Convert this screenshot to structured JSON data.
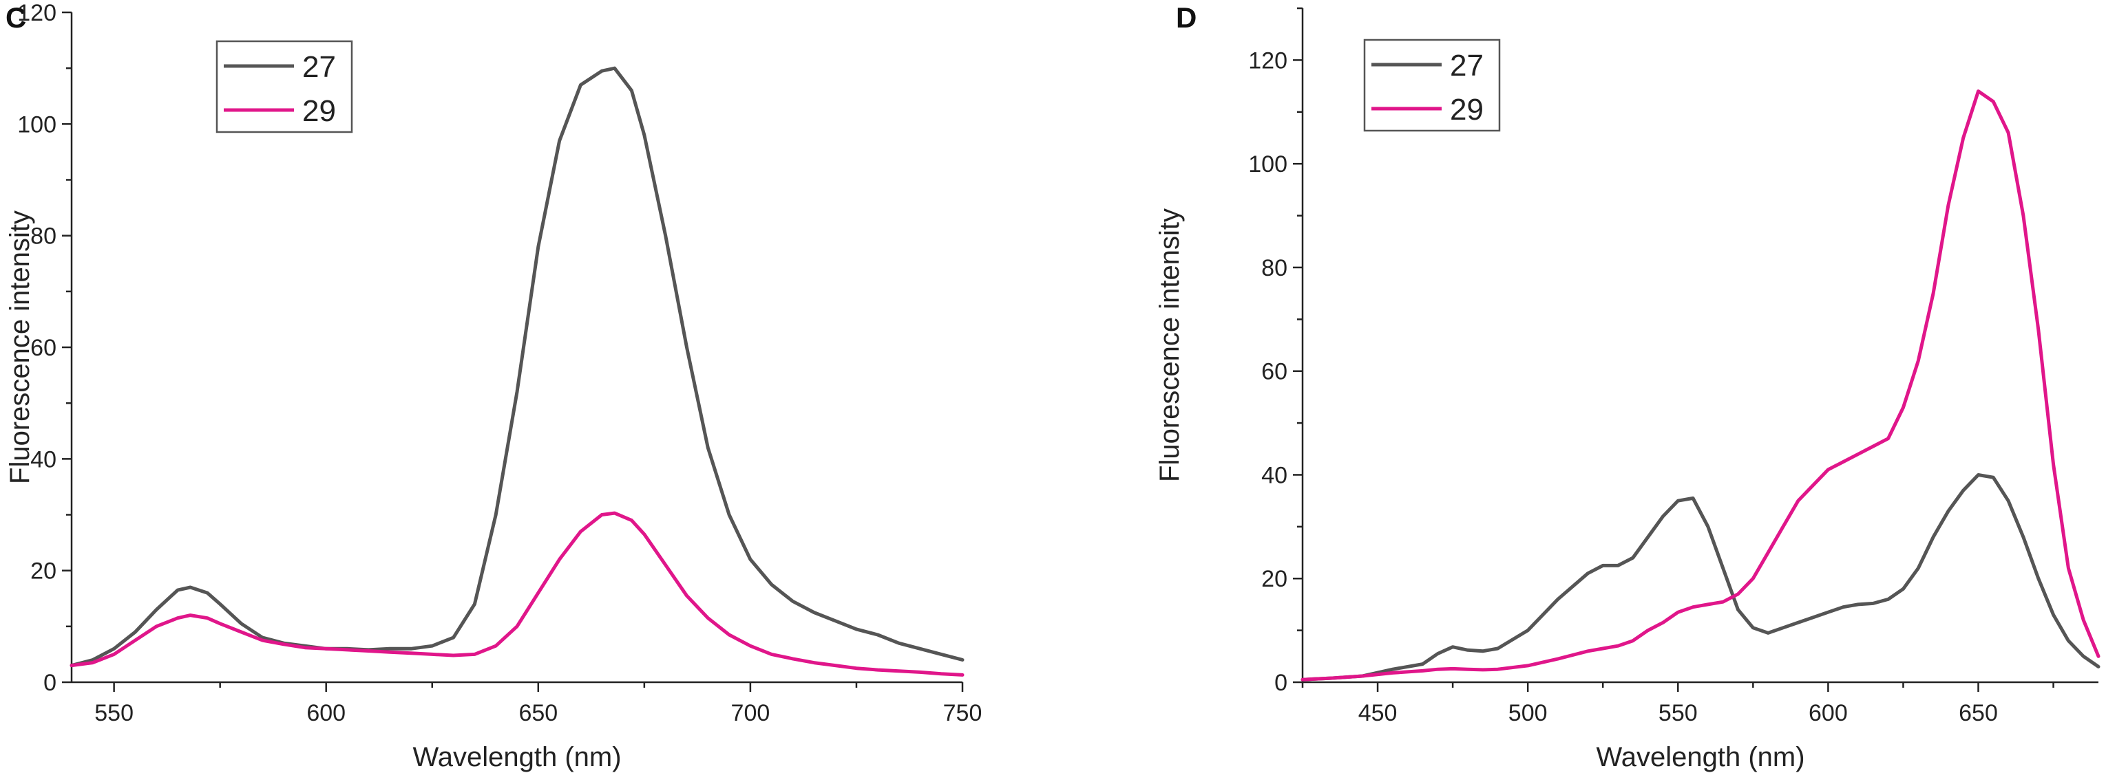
{
  "chart_data": [
    {
      "panel": "C",
      "type": "line",
      "xlabel": "Wavelength (nm)",
      "ylabel": "Fluorescence intensity",
      "xlim": [
        540,
        750
      ],
      "ylim": [
        0,
        120
      ],
      "xticks": [
        550,
        600,
        650,
        700,
        750
      ],
      "yticks": [
        0,
        20,
        40,
        60,
        80,
        100,
        120
      ],
      "legend_position": "top-left",
      "series": [
        {
          "name": "27",
          "color": "#555555",
          "x": [
            540,
            545,
            550,
            555,
            560,
            565,
            568,
            572,
            575,
            580,
            585,
            590,
            595,
            600,
            605,
            610,
            615,
            620,
            625,
            630,
            635,
            640,
            645,
            650,
            655,
            660,
            665,
            668,
            672,
            675,
            680,
            685,
            690,
            695,
            700,
            705,
            710,
            715,
            720,
            725,
            730,
            735,
            740,
            745,
            750
          ],
          "y": [
            3,
            4,
            6,
            9,
            13,
            16.5,
            17,
            16,
            14,
            10.5,
            8,
            7,
            6.5,
            6,
            6,
            5.8,
            6,
            6,
            6.5,
            8,
            14,
            30,
            52,
            78,
            97,
            107,
            109.5,
            110,
            106,
            98,
            80,
            60,
            42,
            30,
            22,
            17.5,
            14.5,
            12.5,
            11,
            9.5,
            8.5,
            7,
            6,
            5,
            4
          ]
        },
        {
          "name": "29",
          "color": "#e0168a",
          "x": [
            540,
            545,
            550,
            555,
            560,
            565,
            568,
            572,
            575,
            580,
            585,
            590,
            595,
            600,
            605,
            610,
            615,
            620,
            625,
            630,
            635,
            640,
            645,
            650,
            655,
            660,
            665,
            668,
            672,
            675,
            680,
            685,
            690,
            695,
            700,
            705,
            710,
            715,
            720,
            725,
            730,
            735,
            740,
            745,
            750
          ],
          "y": [
            3,
            3.5,
            5,
            7.5,
            10,
            11.5,
            12,
            11.5,
            10.5,
            9,
            7.5,
            6.8,
            6.2,
            6,
            5.8,
            5.6,
            5.4,
            5.2,
            5,
            4.8,
            5,
            6.5,
            10,
            16,
            22,
            27,
            30,
            30.3,
            29,
            26.5,
            21,
            15.5,
            11.5,
            8.5,
            6.5,
            5,
            4.2,
            3.5,
            3,
            2.5,
            2.2,
            2,
            1.8,
            1.5,
            1.3
          ]
        }
      ]
    },
    {
      "panel": "D",
      "type": "line",
      "xlabel": "Wavelength (nm)",
      "ylabel": "Fluorescence intensity",
      "xlim": [
        425,
        690
      ],
      "ylim": [
        0,
        130
      ],
      "xticks": [
        450,
        500,
        550,
        600,
        650
      ],
      "yticks": [
        0,
        20,
        40,
        60,
        80,
        100,
        120
      ],
      "legend_position": "top-left",
      "series": [
        {
          "name": "27",
          "color": "#555555",
          "x": [
            425,
            435,
            445,
            455,
            465,
            470,
            475,
            480,
            485,
            490,
            500,
            510,
            520,
            525,
            530,
            535,
            540,
            545,
            550,
            555,
            560,
            565,
            570,
            575,
            580,
            585,
            590,
            595,
            600,
            605,
            610,
            615,
            620,
            625,
            630,
            635,
            640,
            645,
            650,
            655,
            660,
            665,
            670,
            675,
            680,
            685,
            690
          ],
          "y": [
            0.5,
            0.8,
            1.2,
            2.5,
            3.5,
            5.5,
            6.8,
            6.2,
            6,
            6.5,
            10,
            16,
            21,
            22.5,
            22.5,
            24,
            28,
            32,
            35,
            35.5,
            30,
            22,
            14,
            10.5,
            9.5,
            10.5,
            11.5,
            12.5,
            13.5,
            14.5,
            15,
            15.2,
            16,
            18,
            22,
            28,
            33,
            37,
            40,
            39.5,
            35,
            28,
            20,
            13,
            8,
            5,
            3
          ]
        },
        {
          "name": "29",
          "color": "#e0168a",
          "x": [
            425,
            435,
            445,
            455,
            465,
            470,
            475,
            480,
            485,
            490,
            500,
            510,
            520,
            525,
            530,
            535,
            540,
            545,
            550,
            555,
            560,
            565,
            570,
            575,
            580,
            585,
            590,
            595,
            600,
            605,
            610,
            615,
            620,
            625,
            630,
            635,
            640,
            645,
            650,
            655,
            660,
            665,
            670,
            675,
            680,
            685,
            690
          ],
          "y": [
            0.5,
            0.8,
            1.2,
            1.8,
            2.2,
            2.5,
            2.6,
            2.5,
            2.4,
            2.5,
            3.2,
            4.5,
            6,
            6.5,
            7,
            8,
            10,
            11.5,
            13.5,
            14.5,
            15,
            15.5,
            17,
            20,
            25,
            30,
            35,
            38,
            41,
            42.5,
            44,
            45.5,
            47,
            53,
            62,
            75,
            92,
            105,
            114,
            112,
            106,
            90,
            68,
            42,
            22,
            12,
            5
          ]
        }
      ]
    }
  ],
  "labels": {
    "panel_c": "C",
    "panel_d": "D"
  }
}
